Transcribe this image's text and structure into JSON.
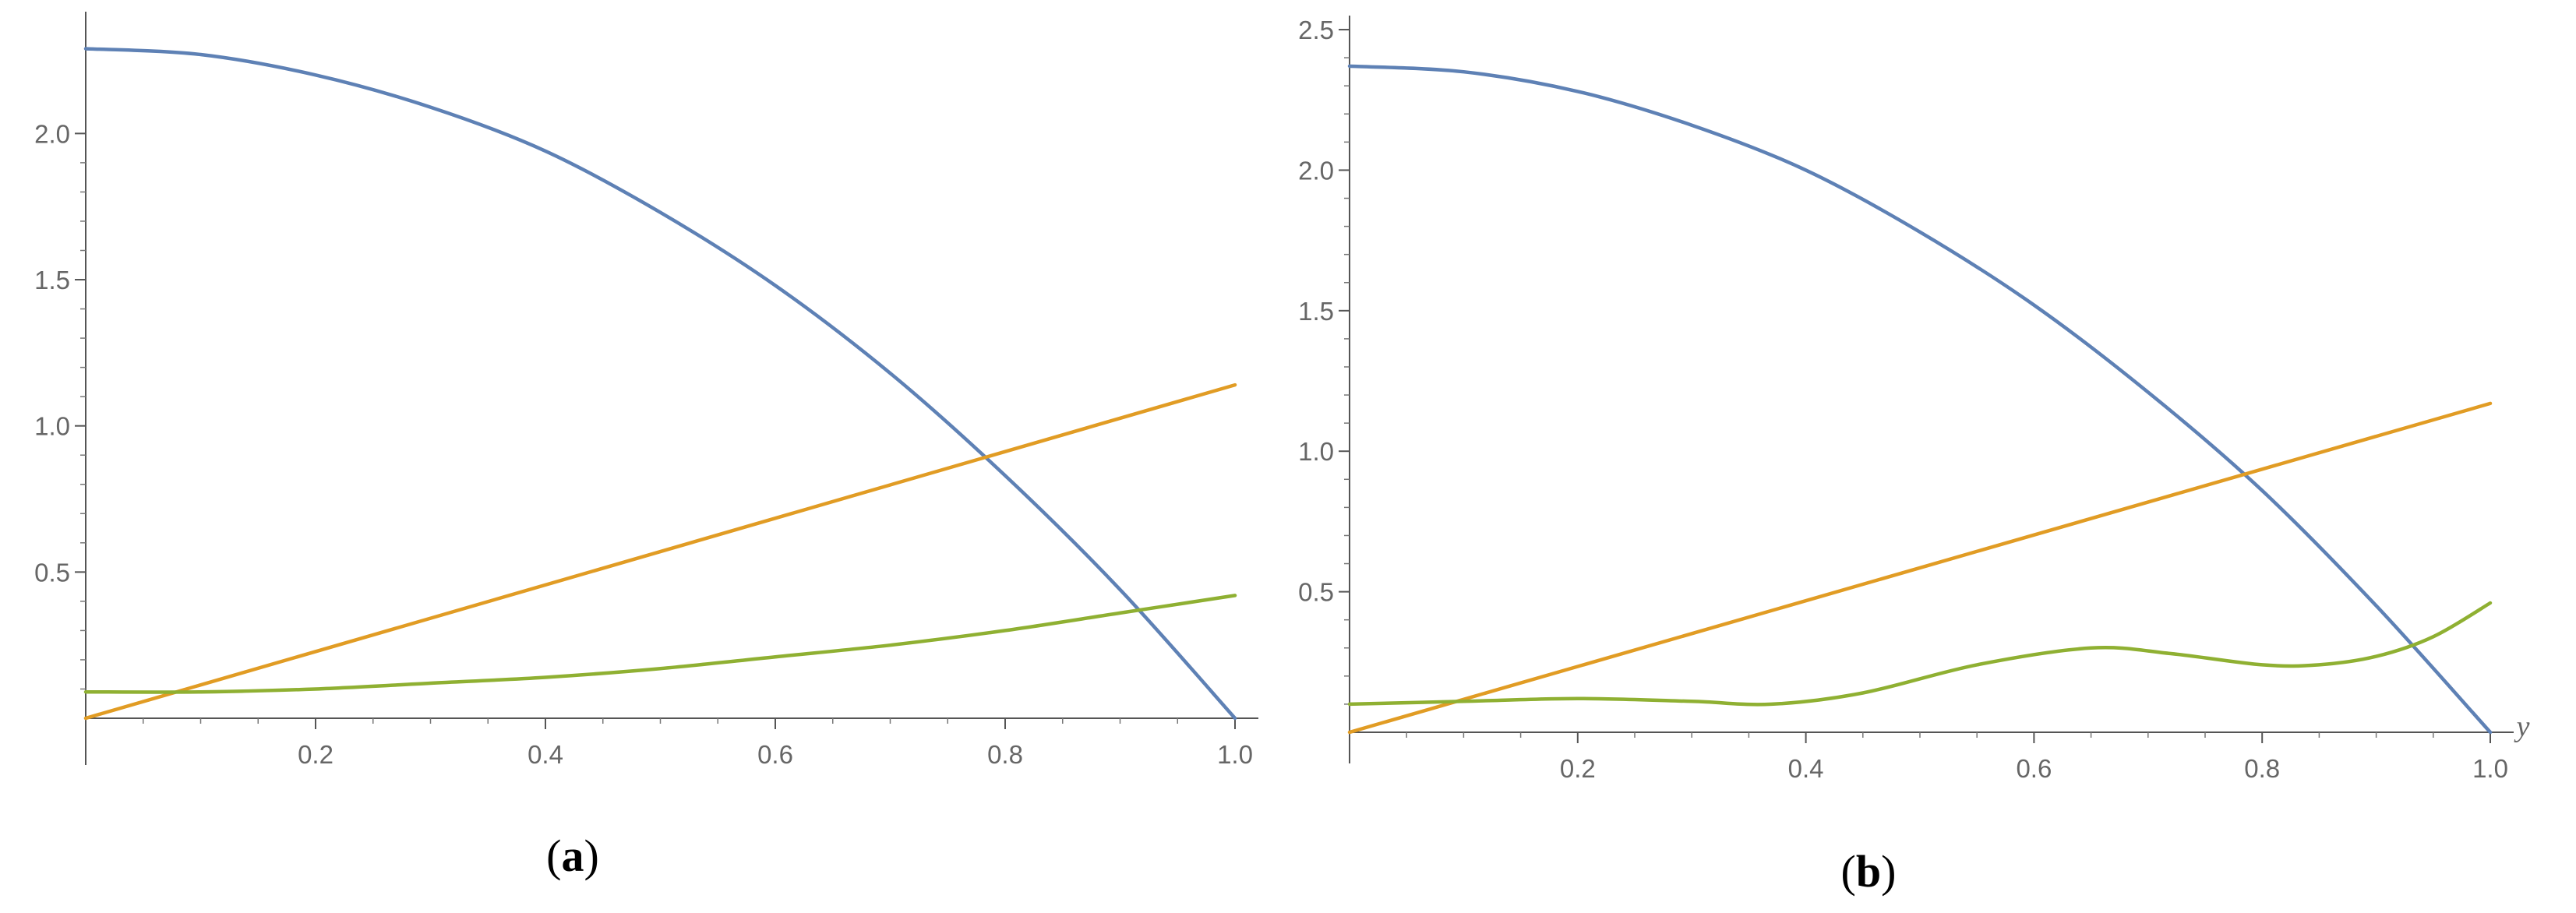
{
  "chart_data": [
    {
      "type": "line",
      "caption": {
        "open": "(",
        "letter": "a",
        "close": ")"
      },
      "xlabel": "",
      "ylabel": "",
      "xlim": [
        0,
        1.0
      ],
      "ylim": [
        0,
        2.35
      ],
      "xticks": [
        "0.2",
        "0.4",
        "0.6",
        "0.8",
        "1.0"
      ],
      "yticks": [
        "0.5",
        "1.0",
        "1.5",
        "2.0"
      ],
      "series": [
        {
          "color": "#5e81b5",
          "x": [
            0,
            0.1,
            0.2,
            0.3,
            0.4,
            0.5,
            0.6,
            0.7,
            0.8,
            0.9,
            1.0
          ],
          "y": [
            2.29,
            2.27,
            2.2,
            2.09,
            1.94,
            1.73,
            1.48,
            1.18,
            0.83,
            0.44,
            0.0
          ]
        },
        {
          "color": "#e19c24",
          "x": [
            0,
            1.0
          ],
          "y": [
            0.0,
            1.14
          ]
        },
        {
          "color": "#8fb032",
          "x": [
            0,
            0.1,
            0.2,
            0.3,
            0.4,
            0.5,
            0.6,
            0.7,
            0.8,
            0.9,
            1.0
          ],
          "y": [
            0.09,
            0.09,
            0.1,
            0.12,
            0.14,
            0.17,
            0.21,
            0.25,
            0.3,
            0.36,
            0.42
          ]
        }
      ]
    },
    {
      "type": "line",
      "caption": {
        "open": "(",
        "letter": "b",
        "close": ")"
      },
      "xlabel": "y",
      "ylabel": "",
      "xlim": [
        0,
        1.0
      ],
      "ylim": [
        0,
        2.55
      ],
      "xticks": [
        "0.2",
        "0.4",
        "0.6",
        "0.8",
        "1.0"
      ],
      "yticks": [
        "0.5",
        "1.0",
        "1.5",
        "2.0",
        "2.5"
      ],
      "series": [
        {
          "color": "#5e81b5",
          "x": [
            0,
            0.1,
            0.2,
            0.3,
            0.4,
            0.5,
            0.6,
            0.7,
            0.8,
            0.9,
            1.0
          ],
          "y": [
            2.37,
            2.35,
            2.28,
            2.16,
            2.0,
            1.78,
            1.52,
            1.21,
            0.86,
            0.45,
            0.0
          ]
        },
        {
          "color": "#e19c24",
          "x": [
            0,
            1.0
          ],
          "y": [
            0.0,
            1.17
          ]
        },
        {
          "color": "#8fb032",
          "x": [
            0,
            0.1,
            0.2,
            0.3,
            0.37,
            0.45,
            0.55,
            0.65,
            0.72,
            0.8,
            0.85,
            0.9,
            0.95,
            1.0
          ],
          "y": [
            0.1,
            0.11,
            0.12,
            0.11,
            0.1,
            0.14,
            0.24,
            0.3,
            0.28,
            0.24,
            0.24,
            0.27,
            0.34,
            0.46
          ]
        }
      ]
    }
  ]
}
